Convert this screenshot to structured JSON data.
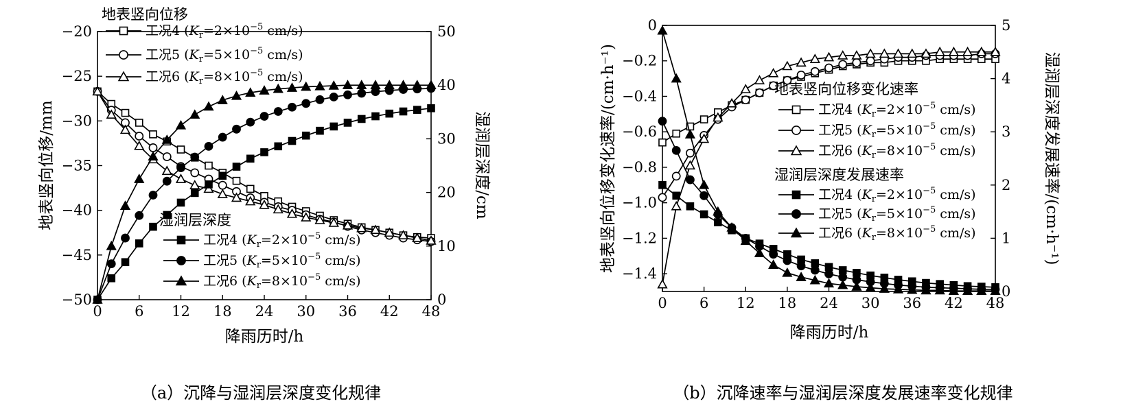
{
  "chart_data": [
    {
      "id": "a",
      "type": "line",
      "caption": "（a）沉降与湿润层深度变化规律",
      "xlabel": "降雨历时/h",
      "ylabel_left": "地表竖向位移/mm",
      "ylabel_right": "湿润层深度/cm",
      "xlim": [
        0,
        48
      ],
      "ylim_left": [
        -50,
        -20
      ],
      "ylim_right": [
        0,
        50
      ],
      "x_ticks": [
        "0",
        "6",
        "12",
        "18",
        "24",
        "30",
        "36",
        "42",
        "48"
      ],
      "y_left_ticks": [
        "−20",
        "−25",
        "−30",
        "−35",
        "−40",
        "−45",
        "−50"
      ],
      "y_right_ticks": [
        "50",
        "40",
        "30",
        "20",
        "10",
        "0"
      ],
      "x": [
        0,
        2,
        4,
        6,
        8,
        10,
        12,
        14,
        16,
        18,
        20,
        22,
        24,
        26,
        28,
        30,
        32,
        34,
        36,
        38,
        40,
        42,
        44,
        46,
        48
      ],
      "legend_groups": [
        {
          "title": "地表竖向位移",
          "axis": "left"
        },
        {
          "title": "湿润层深度",
          "axis": "right"
        }
      ],
      "series": [
        {
          "group": "地表竖向位移",
          "case": "工况4",
          "kr": "2",
          "axis": "left",
          "marker": "square",
          "filled": false,
          "values": [
            -26.7,
            -28.1,
            -29.1,
            -30.2,
            -31.5,
            -32.3,
            -33.2,
            -34.1,
            -35.0,
            -35.8,
            -36.7,
            -37.6,
            -38.4,
            -39.0,
            -39.6,
            -40.1,
            -40.6,
            -41.1,
            -41.5,
            -41.9,
            -42.2,
            -42.5,
            -42.8,
            -43.0,
            -43.1
          ]
        },
        {
          "group": "地表竖向位移",
          "case": "工况5",
          "kr": "5",
          "axis": "left",
          "marker": "circle",
          "filled": false,
          "values": [
            -26.7,
            -28.8,
            -30.2,
            -31.7,
            -33.0,
            -34.0,
            -35.1,
            -35.8,
            -36.5,
            -37.2,
            -37.9,
            -38.6,
            -39.1,
            -39.6,
            -40.0,
            -40.5,
            -41.0,
            -41.3,
            -41.8,
            -42.2,
            -42.5,
            -42.8,
            -43.1,
            -43.3,
            -43.5
          ]
        },
        {
          "group": "地表竖向位移",
          "case": "工况6",
          "kr": "8",
          "axis": "left",
          "marker": "triangle",
          "filled": false,
          "values": [
            -26.7,
            -29.3,
            -31.0,
            -32.8,
            -34.3,
            -35.6,
            -36.5,
            -37.2,
            -37.6,
            -38.2,
            -38.6,
            -39.0,
            -39.4,
            -39.9,
            -40.4,
            -40.8,
            -41.1,
            -41.4,
            -41.7,
            -42.0,
            -42.2,
            -42.5,
            -42.8,
            -43.1,
            -43.4
          ]
        },
        {
          "group": "湿润层深度",
          "case": "工况4",
          "kr": "2",
          "axis": "right",
          "marker": "square",
          "filled": true,
          "values": [
            0,
            4.0,
            7.0,
            10.5,
            13.6,
            15.8,
            18.1,
            19.9,
            21.5,
            23.1,
            24.8,
            26.3,
            27.5,
            28.6,
            29.6,
            30.6,
            31.5,
            32.3,
            33.0,
            33.7,
            34.2,
            34.7,
            35.1,
            35.4,
            35.7
          ]
        },
        {
          "group": "湿润层深度",
          "case": "工况5",
          "kr": "5",
          "axis": "right",
          "marker": "circle",
          "filled": true,
          "values": [
            0,
            6.7,
            11.5,
            15.7,
            19.5,
            22.1,
            24.6,
            26.6,
            28.6,
            30.3,
            31.8,
            33.1,
            34.2,
            35.1,
            35.9,
            36.6,
            37.3,
            37.8,
            38.2,
            38.5,
            38.8,
            39.0,
            39.2,
            39.3,
            39.4
          ]
        },
        {
          "group": "湿润层深度",
          "case": "工况6",
          "kr": "8",
          "axis": "right",
          "marker": "triangle",
          "filled": true,
          "values": [
            0,
            10.0,
            17.5,
            22.5,
            26.7,
            29.8,
            32.5,
            34.5,
            36.0,
            37.2,
            38.0,
            38.6,
            39.0,
            39.3,
            39.5,
            39.7,
            39.8,
            39.9,
            40.0,
            40.0,
            40.0,
            40.0,
            40.0,
            40.0,
            40.0
          ]
        }
      ]
    },
    {
      "id": "b",
      "type": "line",
      "caption": "（b）沉降速率与湿润层深度发展速率变化规律",
      "xlabel": "降雨历时/h",
      "ylabel_left": "地表竖向位移变化速率/(cm·h⁻¹)",
      "ylabel_right": "湿润层深度发展速率/(cm·h⁻¹)",
      "xlim": [
        0,
        48
      ],
      "ylim_left": [
        -1.5,
        0
      ],
      "ylim_right": [
        0,
        5
      ],
      "x_ticks": [
        "0",
        "6",
        "12",
        "18",
        "24",
        "30",
        "36",
        "42",
        "48"
      ],
      "y_left_ticks": [
        "0",
        "−0.2",
        "−0.4",
        "−0.6",
        "−0.8",
        "−1.0",
        "−1.2",
        "−1.4"
      ],
      "y_right_ticks": [
        "5",
        "4",
        "3",
        "2",
        "1",
        "0"
      ],
      "x": [
        0,
        2,
        4,
        6,
        8,
        10,
        12,
        14,
        16,
        18,
        20,
        22,
        24,
        26,
        28,
        30,
        32,
        34,
        36,
        38,
        40,
        42,
        44,
        46,
        48
      ],
      "legend_groups": [
        {
          "title": "地表竖向位移变化速率",
          "axis": "left"
        },
        {
          "title": "湿润层深度发展速率",
          "axis": "right"
        }
      ],
      "series": [
        {
          "group": "地表竖向位移变化速率",
          "case": "工况4",
          "kr": "2",
          "axis": "left",
          "marker": "square",
          "filled": false,
          "values": [
            -0.66,
            -0.61,
            -0.57,
            -0.53,
            -0.49,
            -0.45,
            -0.42,
            -0.38,
            -0.34,
            -0.31,
            -0.29,
            -0.27,
            -0.25,
            -0.23,
            -0.22,
            -0.21,
            -0.21,
            -0.2,
            -0.2,
            -0.2,
            -0.19,
            -0.19,
            -0.19,
            -0.19,
            -0.19
          ]
        },
        {
          "group": "地表竖向位移变化速率",
          "case": "工况5",
          "kr": "5",
          "axis": "left",
          "marker": "circle",
          "filled": false,
          "values": [
            -0.97,
            -0.85,
            -0.72,
            -0.62,
            -0.53,
            -0.46,
            -0.42,
            -0.38,
            -0.34,
            -0.31,
            -0.28,
            -0.26,
            -0.24,
            -0.22,
            -0.21,
            -0.2,
            -0.19,
            -0.18,
            -0.18,
            -0.17,
            -0.17,
            -0.17,
            -0.17,
            -0.16,
            -0.16
          ]
        },
        {
          "group": "地表竖向位移变化速率",
          "case": "工况6",
          "kr": "8",
          "axis": "left",
          "marker": "triangle",
          "filled": false,
          "values": [
            -1.46,
            -1.02,
            -0.79,
            -0.64,
            -0.52,
            -0.44,
            -0.36,
            -0.31,
            -0.27,
            -0.23,
            -0.21,
            -0.19,
            -0.18,
            -0.17,
            -0.17,
            -0.16,
            -0.16,
            -0.16,
            -0.16,
            -0.16,
            -0.15,
            -0.15,
            -0.15,
            -0.15,
            -0.15
          ]
        },
        {
          "group": "湿润层深度发展速率",
          "case": "工况4",
          "kr": "2",
          "axis": "right",
          "marker": "square",
          "filled": true,
          "values": [
            2.0,
            1.8,
            1.6,
            1.45,
            1.3,
            1.15,
            1.0,
            0.9,
            0.8,
            0.7,
            0.6,
            0.53,
            0.46,
            0.4,
            0.35,
            0.3,
            0.26,
            0.22,
            0.19,
            0.16,
            0.14,
            0.12,
            0.1,
            0.09,
            0.08
          ]
        },
        {
          "group": "湿润层深度发展速率",
          "case": "工况5",
          "kr": "5",
          "axis": "right",
          "marker": "circle",
          "filled": true,
          "values": [
            3.2,
            2.65,
            2.1,
            1.8,
            1.45,
            1.2,
            1.0,
            0.85,
            0.7,
            0.58,
            0.48,
            0.4,
            0.33,
            0.27,
            0.22,
            0.18,
            0.15,
            0.12,
            0.1,
            0.08,
            0.07,
            0.06,
            0.05,
            0.04,
            0.04
          ]
        },
        {
          "group": "湿润层深度发展速率",
          "case": "工况6",
          "kr": "8",
          "axis": "right",
          "marker": "triangle",
          "filled": true,
          "values": [
            4.9,
            4.0,
            2.95,
            2.0,
            1.5,
            1.2,
            0.95,
            0.72,
            0.5,
            0.35,
            0.27,
            0.21,
            0.15,
            0.12,
            0.09,
            0.07,
            0.05,
            0.04,
            0.03,
            0.02,
            0.02,
            0.01,
            0.01,
            0.01,
            0.01
          ]
        }
      ]
    }
  ]
}
